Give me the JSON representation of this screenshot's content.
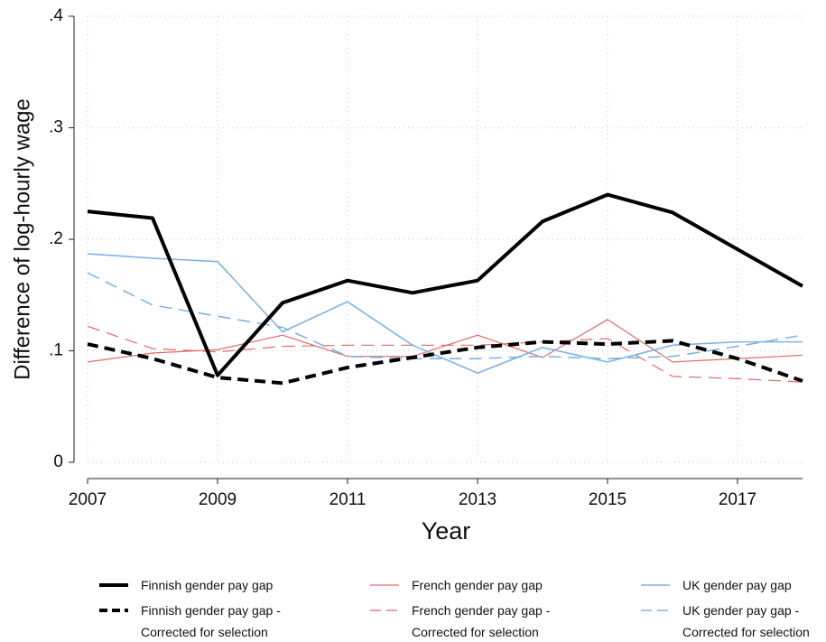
{
  "chart_data": {
    "type": "line",
    "x_label": "Year",
    "y_label": "Difference of log-hourly wage",
    "x": [
      2007,
      2008,
      2009,
      2010,
      2011,
      2012,
      2013,
      2014,
      2015,
      2016,
      2017,
      2018
    ],
    "xlim": [
      2007,
      2018
    ],
    "xticks": [
      2007,
      2009,
      2011,
      2013,
      2015,
      2017
    ],
    "ylim": [
      0,
      0.4
    ],
    "yticks": [
      0,
      {
        "value": 0.1,
        "label": ".1"
      },
      {
        "value": 0.2,
        "label": ".2"
      },
      {
        "value": 0.3,
        "label": ".3"
      },
      {
        "value": 0.4,
        "label": ".4"
      }
    ],
    "grid": true,
    "legend": "bottom",
    "series": [
      {
        "name": "Finnish gender pay gap",
        "color": "#000000",
        "style": "solid",
        "width": 4,
        "values": [
          0.225,
          0.219,
          0.078,
          0.143,
          0.163,
          0.152,
          0.163,
          0.216,
          0.24,
          0.224,
          0.191,
          0.158
        ]
      },
      {
        "name": "Finnish gender pay gap -\nCorrected for selection",
        "color": "#000000",
        "style": "dashed",
        "width": 4,
        "values": [
          0.106,
          0.093,
          0.076,
          0.071,
          0.085,
          0.094,
          0.103,
          0.108,
          0.106,
          0.109,
          0.093,
          0.073
        ]
      },
      {
        "name": "French gender pay gap",
        "color": "#e06a6a",
        "style": "solid",
        "width": 1.2,
        "values": [
          0.09,
          0.098,
          0.101,
          0.114,
          0.095,
          0.095,
          0.114,
          0.094,
          0.128,
          0.09,
          0.093,
          0.096
        ]
      },
      {
        "name": "French gender pay gap -\nCorrected for selection",
        "color": "#e06a6a",
        "style": "dashed",
        "width": 1.2,
        "values": [
          0.122,
          0.102,
          0.099,
          0.104,
          0.105,
          0.105,
          0.105,
          0.108,
          0.111,
          0.077,
          0.075,
          0.072
        ]
      },
      {
        "name": "UK gender pay gap",
        "color": "#7fb3e3",
        "style": "solid",
        "width": 1.6,
        "values": [
          0.187,
          0.183,
          0.18,
          0.117,
          0.144,
          0.105,
          0.08,
          0.103,
          0.09,
          0.105,
          0.108,
          0.108
        ]
      },
      {
        "name": "UK gender pay gap -\nCorrected for selection",
        "color": "#7fb3e3",
        "style": "dashed",
        "width": 1.6,
        "values": [
          0.17,
          0.141,
          0.131,
          0.121,
          0.095,
          0.093,
          0.093,
          0.095,
          0.093,
          0.095,
          0.104,
          0.114
        ]
      }
    ]
  }
}
